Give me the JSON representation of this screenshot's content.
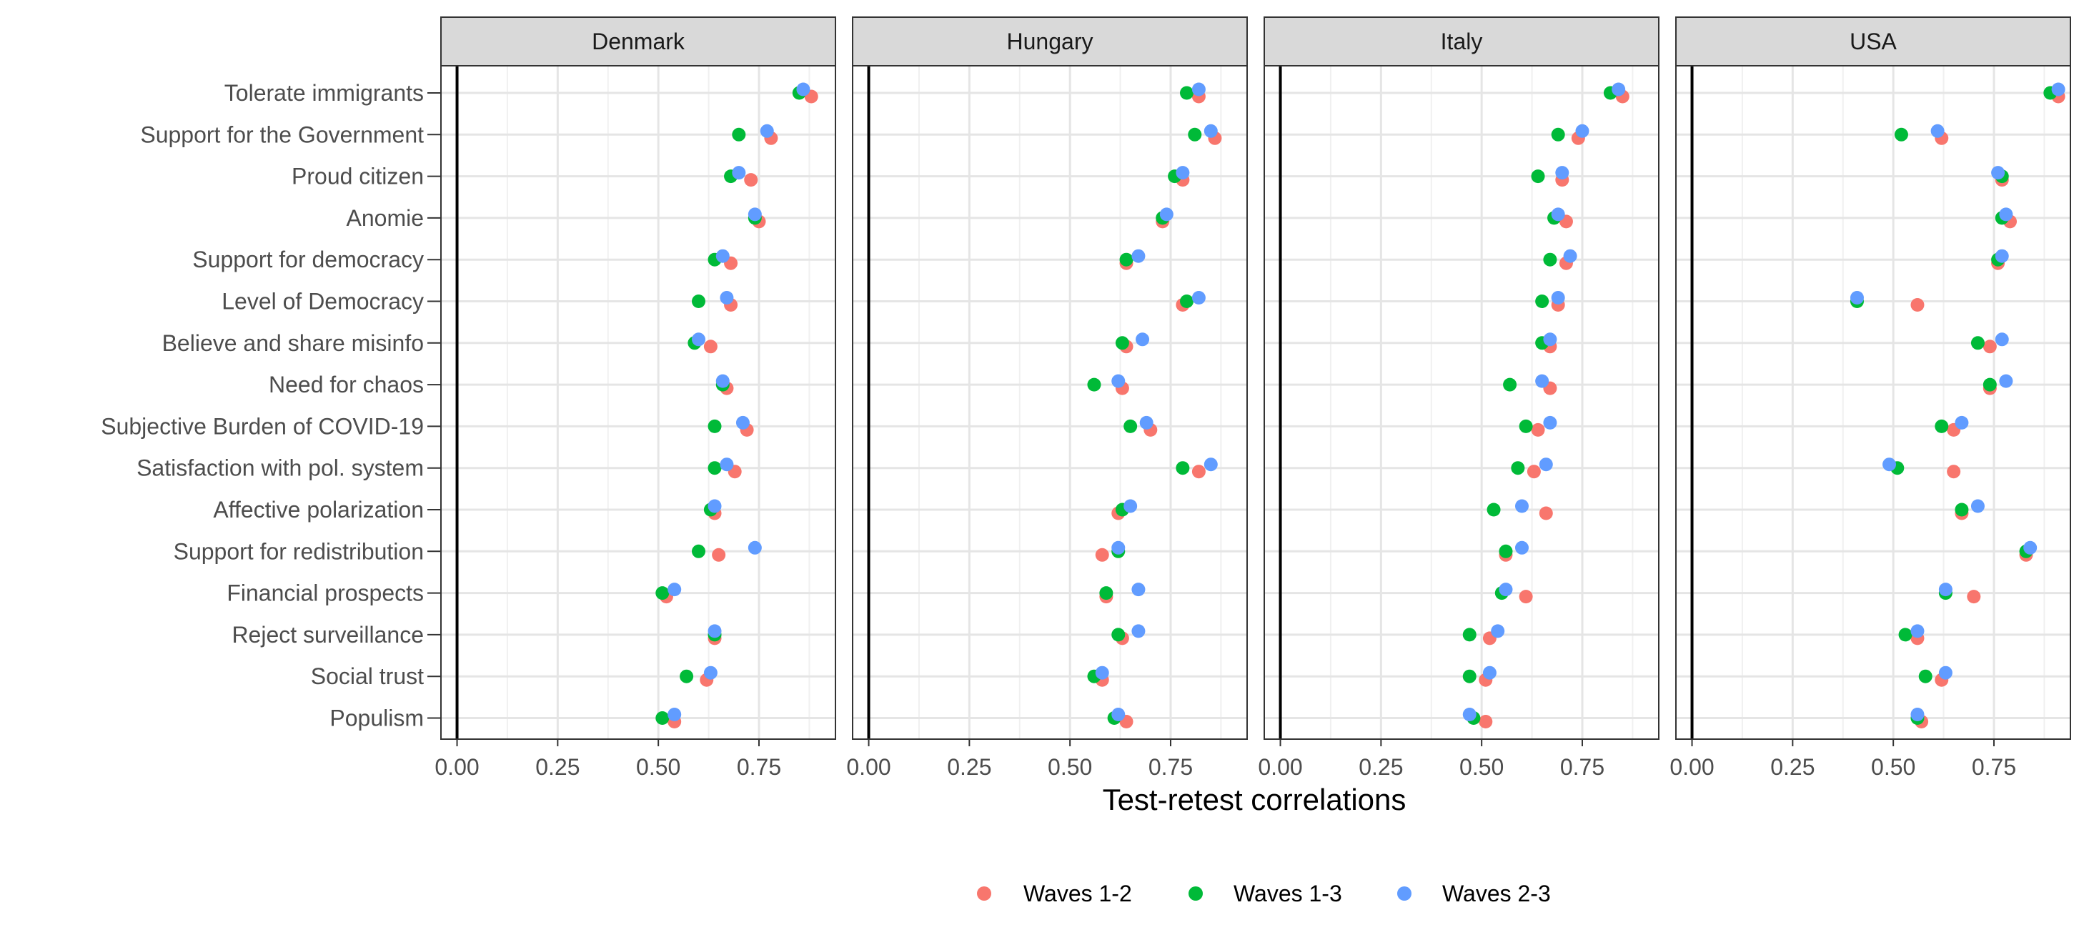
{
  "chart_data": {
    "type": "scatter",
    "orientation": "horizontal",
    "xlabel": "Test-retest correlations",
    "ylabel": "",
    "xlim": [
      -0.04,
      0.94
    ],
    "xticks": [
      0,
      0.25,
      0.5,
      0.75
    ],
    "xtick_labels": [
      "0.00",
      "0.25",
      "0.50",
      "0.75"
    ],
    "grid": true,
    "legend_position": "bottom",
    "categories": [
      "Tolerate immigrants",
      "Support for the Government",
      "Proud citizen",
      "Anomie",
      "Support for democracy",
      "Level of Democracy",
      "Believe and share misinfo",
      "Need for chaos",
      "Subjective Burden of COVID-19",
      "Satisfaction with pol. system",
      "Affective polarization",
      "Support for redistribution",
      "Financial prospects",
      "Reject surveillance",
      "Social trust",
      "Populism"
    ],
    "series_meta": [
      {
        "name": "Waves 1-2",
        "color": "#F8766D"
      },
      {
        "name": "Waves 1-3",
        "color": "#00BA38"
      },
      {
        "name": "Waves 2-3",
        "color": "#619CFF"
      }
    ],
    "panels": [
      {
        "name": "Denmark",
        "series": [
          {
            "name": "Waves 1-2",
            "values": [
              0.88,
              0.78,
              0.73,
              0.75,
              0.68,
              0.68,
              0.63,
              0.67,
              0.72,
              0.69,
              0.64,
              0.65,
              0.52,
              0.64,
              0.62,
              0.54
            ]
          },
          {
            "name": "Waves 1-3",
            "values": [
              0.85,
              0.7,
              0.68,
              0.74,
              0.64,
              0.6,
              0.59,
              0.66,
              0.64,
              0.64,
              0.63,
              0.6,
              0.51,
              0.64,
              0.57,
              0.51
            ]
          },
          {
            "name": "Waves 2-3",
            "values": [
              0.86,
              0.77,
              0.7,
              0.74,
              0.66,
              0.67,
              0.6,
              0.66,
              0.71,
              0.67,
              0.64,
              0.74,
              0.54,
              0.64,
              0.63,
              0.54
            ]
          }
        ]
      },
      {
        "name": "Hungary",
        "series": [
          {
            "name": "Waves 1-2",
            "values": [
              0.82,
              0.86,
              0.78,
              0.73,
              0.64,
              0.78,
              0.64,
              0.63,
              0.7,
              0.82,
              0.62,
              0.58,
              0.59,
              0.63,
              0.58,
              0.64
            ]
          },
          {
            "name": "Waves 1-3",
            "values": [
              0.79,
              0.81,
              0.76,
              0.73,
              0.64,
              0.79,
              0.63,
              0.56,
              0.65,
              0.78,
              0.63,
              0.62,
              0.59,
              0.62,
              0.56,
              0.61
            ]
          },
          {
            "name": "Waves 2-3",
            "values": [
              0.82,
              0.85,
              0.78,
              0.74,
              0.67,
              0.82,
              0.68,
              0.62,
              0.69,
              0.85,
              0.65,
              0.62,
              0.67,
              0.67,
              0.58,
              0.62
            ]
          }
        ]
      },
      {
        "name": "Italy",
        "series": [
          {
            "name": "Waves 1-2",
            "values": [
              0.85,
              0.74,
              0.7,
              0.71,
              0.71,
              0.69,
              0.67,
              0.67,
              0.64,
              0.63,
              0.66,
              0.56,
              0.61,
              0.52,
              0.51,
              0.51
            ]
          },
          {
            "name": "Waves 1-3",
            "values": [
              0.82,
              0.69,
              0.64,
              0.68,
              0.67,
              0.65,
              0.65,
              0.57,
              0.61,
              0.59,
              0.53,
              0.56,
              0.55,
              0.47,
              0.47,
              0.48
            ]
          },
          {
            "name": "Waves 2-3",
            "values": [
              0.84,
              0.75,
              0.7,
              0.69,
              0.72,
              0.69,
              0.67,
              0.65,
              0.67,
              0.66,
              0.6,
              0.6,
              0.56,
              0.54,
              0.52,
              0.47
            ]
          }
        ]
      },
      {
        "name": "USA",
        "series": [
          {
            "name": "Waves 1-2",
            "values": [
              0.91,
              0.62,
              0.77,
              0.79,
              0.76,
              0.56,
              0.74,
              0.74,
              0.65,
              0.65,
              0.67,
              0.83,
              0.7,
              0.56,
              0.62,
              0.57
            ]
          },
          {
            "name": "Waves 1-3",
            "values": [
              0.89,
              0.52,
              0.77,
              0.77,
              0.76,
              0.41,
              0.71,
              0.74,
              0.62,
              0.51,
              0.67,
              0.83,
              0.63,
              0.53,
              0.58,
              0.56
            ]
          },
          {
            "name": "Waves 2-3",
            "values": [
              0.91,
              0.61,
              0.76,
              0.78,
              0.77,
              0.41,
              0.77,
              0.78,
              0.67,
              0.49,
              0.71,
              0.84,
              0.63,
              0.56,
              0.63,
              0.56
            ]
          }
        ]
      }
    ]
  }
}
